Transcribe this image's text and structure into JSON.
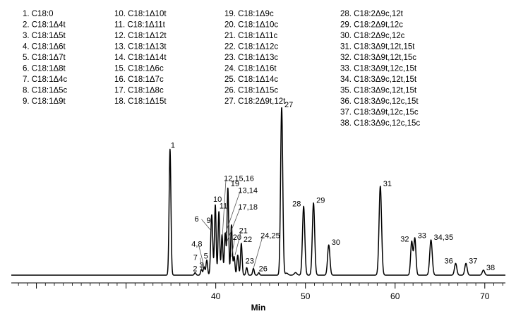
{
  "chart_data": {
    "type": "line",
    "title": "",
    "xlabel": "Min",
    "ylabel": "",
    "xlim": [
      17.2,
      72.3
    ],
    "ylim": [
      0,
      1.0
    ],
    "x_ticks": [
      40,
      50,
      60,
      70
    ],
    "grid": false,
    "legend_position": "top",
    "line_color": "#000000",
    "legend": [
      "1.  C18:0",
      "2.  C18:1Δ4t",
      "3.  C18:1Δ5t",
      "4.  C18:1Δ6t",
      "5.  C18:1Δ7t",
      "6.  C18:1Δ8t",
      "7.  C18:1Δ4c",
      "8.  C18:1Δ5c",
      "9.  C18:1Δ9t",
      "10.  C18:1Δ10t",
      "11.  C18:1Δ11t",
      "12.  C18:1Δ12t",
      "13.  C18:1Δ13t",
      "14.  C18:1Δ14t",
      "15.  C18:1Δ6c",
      "16.  C18:1Δ7c",
      "17.  C18:1Δ8c",
      "18.  C18:1Δ15t",
      "19.  C18:1Δ9c",
      "20.  C18:1Δ10c",
      "21.  C18:1Δ11c",
      "22.  C18:1Δ12c",
      "23.  C18:1Δ13c",
      "24.  C18:1Δ16t",
      "25.  C18:1Δ14c",
      "26.  C18:1Δ15c",
      "27.  C18:2Δ9t,12t",
      "28.  C18:2Δ9c,12t",
      "29.  C18:2Δ9t,12c",
      "30.  C18:2Δ9c,12c",
      "31.  C18:3Δ9t,12t,15t",
      "32.  C18:3Δ9t,12t,15c",
      "33.  C18:3Δ9t,12c,15t",
      "34.  C18:3Δ9c,12t,15t",
      "35.  C18:3Δ9c,12t,15t",
      "36.  C18:3Δ9c,12c,15t",
      "37.  C18:3Δ9t,12c,15c",
      "38.  C18:3Δ9c,12c,15c"
    ],
    "peaks": [
      {
        "rt": 34.9,
        "height": 0.75,
        "width": 0.1
      },
      {
        "rt": 37.7,
        "height": 0.015,
        "width": 0.09
      },
      {
        "rt": 38.4,
        "height": 0.035,
        "width": 0.09
      },
      {
        "rt": 38.7,
        "height": 0.05,
        "width": 0.09
      },
      {
        "rt": 39.0,
        "height": 0.09,
        "width": 0.09
      },
      {
        "rt": 39.55,
        "height": 0.36,
        "width": 0.11
      },
      {
        "rt": 39.95,
        "height": 0.42,
        "width": 0.09
      },
      {
        "rt": 40.35,
        "height": 0.38,
        "width": 0.09
      },
      {
        "rt": 40.7,
        "height": 0.24,
        "width": 0.09
      },
      {
        "rt": 41.05,
        "height": 0.25,
        "width": 0.09
      },
      {
        "rt": 41.35,
        "height": 0.52,
        "width": 0.09
      },
      {
        "rt": 41.75,
        "height": 0.3,
        "width": 0.09
      },
      {
        "rt": 42.05,
        "height": 0.11,
        "width": 0.09
      },
      {
        "rt": 42.45,
        "height": 0.12,
        "width": 0.09
      },
      {
        "rt": 42.85,
        "height": 0.19,
        "width": 0.09
      },
      {
        "rt": 43.45,
        "height": 0.045,
        "width": 0.09
      },
      {
        "rt": 44.2,
        "height": 0.04,
        "width": 0.09
      },
      {
        "rt": 44.8,
        "height": 0.015,
        "width": 0.08
      },
      {
        "rt": 47.35,
        "height": 1.0,
        "width": 0.12
      },
      {
        "rt": 47.9,
        "height": 0.012,
        "width": 0.15
      },
      {
        "rt": 48.9,
        "height": 0.015,
        "width": 0.15
      },
      {
        "rt": 49.8,
        "height": 0.41,
        "width": 0.13
      },
      {
        "rt": 50.9,
        "height": 0.43,
        "width": 0.13
      },
      {
        "rt": 52.6,
        "height": 0.18,
        "width": 0.13
      },
      {
        "rt": 58.35,
        "height": 0.53,
        "width": 0.14
      },
      {
        "rt": 61.85,
        "height": 0.2,
        "width": 0.12
      },
      {
        "rt": 62.2,
        "height": 0.22,
        "width": 0.12
      },
      {
        "rt": 64.0,
        "height": 0.21,
        "width": 0.14
      },
      {
        "rt": 66.75,
        "height": 0.07,
        "width": 0.13
      },
      {
        "rt": 67.9,
        "height": 0.07,
        "width": 0.13
      },
      {
        "rt": 69.85,
        "height": 0.03,
        "width": 0.13
      }
    ],
    "peak_labels": [
      {
        "text": "1",
        "x": 34.9,
        "y": 0.75,
        "dx": 1,
        "dy": -2
      },
      {
        "text": "2",
        "x": 37.7,
        "y": 0.015,
        "dx": -3,
        "dy": -2
      },
      {
        "text": "3",
        "x": 38.4,
        "y": 0.035,
        "dx": -3,
        "dy": -2
      },
      {
        "text": "4,8",
        "x": 38.0,
        "y": 0.17,
        "dx": -9,
        "dy": 0,
        "lead": [
          38.7,
          0.05
        ]
      },
      {
        "text": "7",
        "x": 37.8,
        "y": 0.09,
        "dx": -4,
        "dy": 0,
        "lead": [
          38.45,
          0.03
        ]
      },
      {
        "text": "5",
        "x": 38.9,
        "y": 0.09,
        "dx": -3,
        "dy": -2
      },
      {
        "text": "6",
        "x": 38.1,
        "y": 0.32,
        "dx": -6,
        "dy": 0,
        "lead": [
          39.4,
          0.27
        ]
      },
      {
        "text": "9",
        "x": 39.2,
        "y": 0.31,
        "dx": -3,
        "dy": 0
      },
      {
        "text": "10",
        "x": 39.95,
        "y": 0.42,
        "dx": -3,
        "dy": -4
      },
      {
        "text": "11",
        "x": 40.4,
        "y": 0.38,
        "dx": 0,
        "dy": -4
      },
      {
        "text": "12,15,16",
        "x": 40.9,
        "y": 0.56,
        "dx": 0,
        "dy": 0,
        "lead": [
          40.75,
          0.24
        ]
      },
      {
        "text": "19",
        "x": 41.35,
        "y": 0.52,
        "dx": 4,
        "dy": -2
      },
      {
        "text": "13,14",
        "x": 42.5,
        "y": 0.49,
        "dx": 0,
        "dy": 0,
        "lead": [
          41.1,
          0.25
        ]
      },
      {
        "text": "17,18",
        "x": 42.5,
        "y": 0.39,
        "dx": 0,
        "dy": 0,
        "lead": [
          41.25,
          0.2
        ]
      },
      {
        "text": "20",
        "x": 41.9,
        "y": 0.21,
        "dx": 0,
        "dy": 0,
        "lead": [
          41.75,
          0.11
        ]
      },
      {
        "text": "21",
        "x": 42.6,
        "y": 0.25,
        "dx": 0,
        "dy": 0,
        "lead": [
          42.15,
          0.12
        ]
      },
      {
        "text": "22",
        "x": 42.85,
        "y": 0.19,
        "dx": 3,
        "dy": -2
      },
      {
        "text": "23",
        "x": 43.3,
        "y": 0.07,
        "dx": 0,
        "dy": 0
      },
      {
        "text": "24,25",
        "x": 45.0,
        "y": 0.22,
        "dx": 0,
        "dy": 0,
        "lead": [
          44.2,
          0.04
        ]
      },
      {
        "text": "26",
        "x": 44.8,
        "y": 0.015,
        "dx": 0,
        "dy": -2
      },
      {
        "text": "27",
        "x": 47.35,
        "y": 1.0,
        "dx": 4,
        "dy": 0
      },
      {
        "text": "28",
        "x": 49.8,
        "y": 0.41,
        "dx": -16,
        "dy": 0
      },
      {
        "text": "29",
        "x": 50.9,
        "y": 0.43,
        "dx": 4,
        "dy": 0
      },
      {
        "text": "30",
        "x": 52.6,
        "y": 0.18,
        "dx": 4,
        "dy": 0
      },
      {
        "text": "31",
        "x": 58.35,
        "y": 0.53,
        "dx": 4,
        "dy": 0
      },
      {
        "text": "32",
        "x": 61.85,
        "y": 0.2,
        "dx": -16,
        "dy": 0
      },
      {
        "text": "33",
        "x": 62.2,
        "y": 0.22,
        "dx": 4,
        "dy": 0
      },
      {
        "text": "34,35",
        "x": 64.0,
        "y": 0.21,
        "dx": 4,
        "dy": 0
      },
      {
        "text": "36",
        "x": 66.75,
        "y": 0.07,
        "dx": -16,
        "dy": 0
      },
      {
        "text": "37",
        "x": 67.9,
        "y": 0.07,
        "dx": 4,
        "dy": 0
      },
      {
        "text": "38",
        "x": 69.85,
        "y": 0.03,
        "dx": 4,
        "dy": 0
      }
    ]
  }
}
